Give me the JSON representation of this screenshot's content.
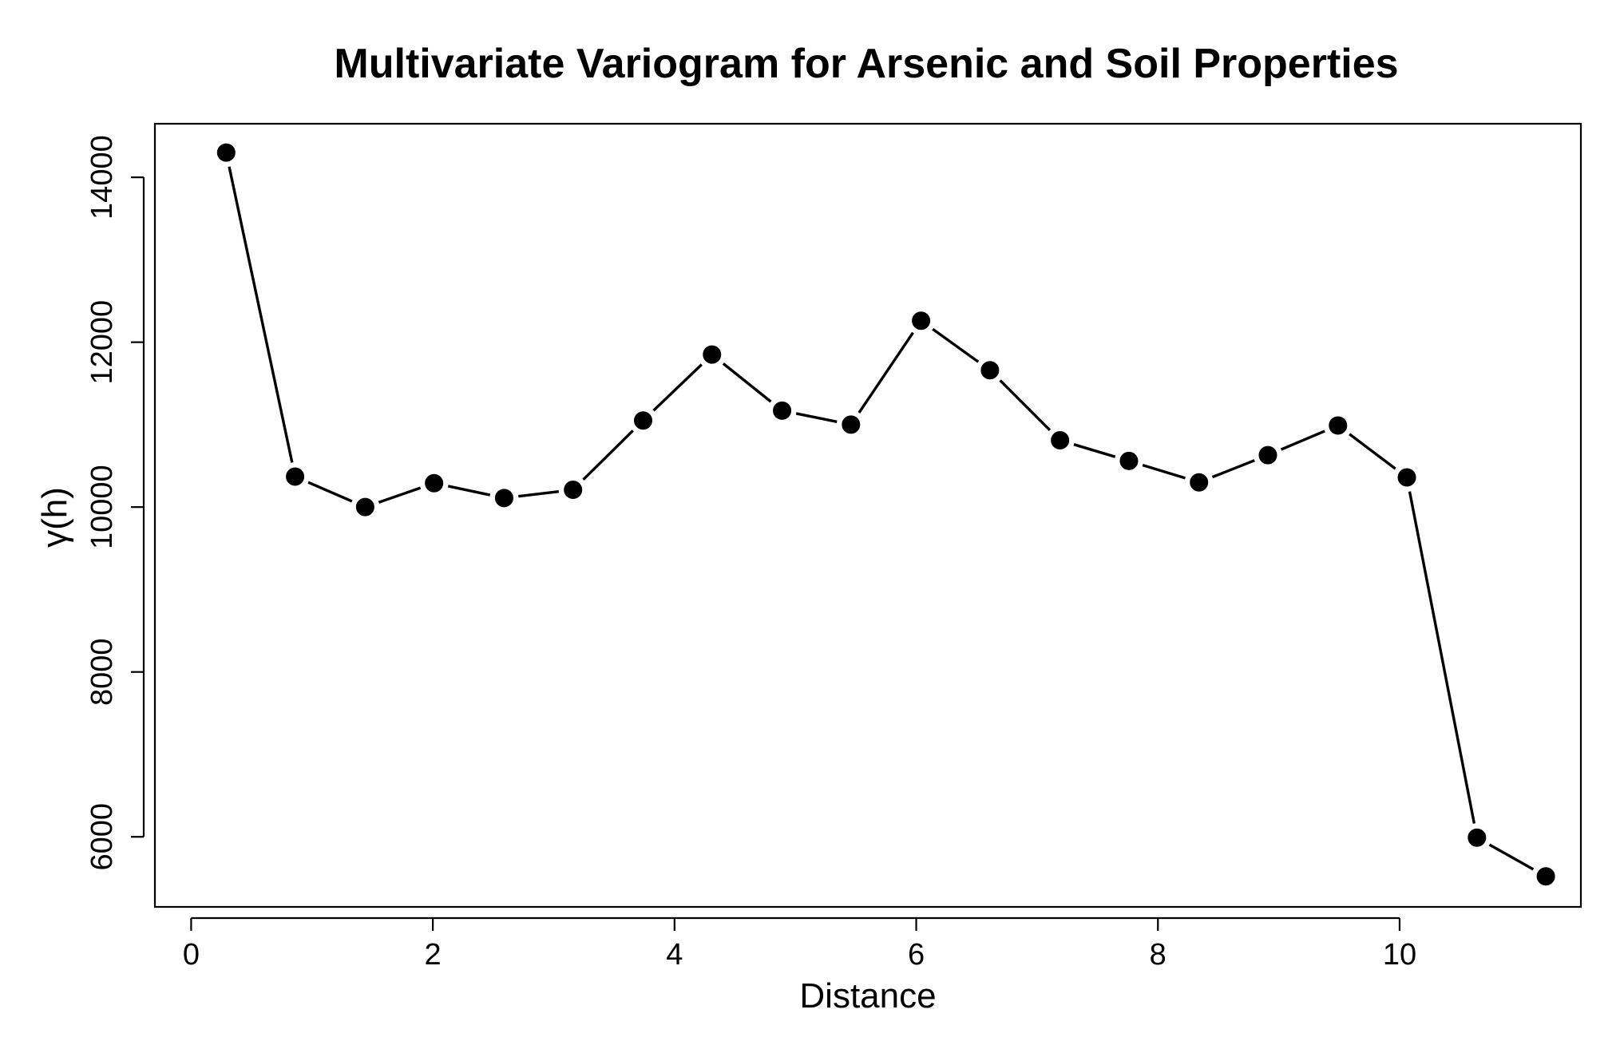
{
  "chart_data": {
    "type": "line",
    "title": "Multivariate Variogram for Arsenic and Soil Properties",
    "xlabel": "Distance",
    "ylabel": "γ(h)",
    "xlim": [
      -0.3,
      11.5
    ],
    "ylim": [
      5150,
      14650
    ],
    "x_ticks": [
      0,
      2,
      4,
      6,
      8,
      10
    ],
    "y_ticks": [
      6000,
      8000,
      10000,
      12000,
      14000
    ],
    "grid": false,
    "line_color": "#000000",
    "marker_color": "#000000",
    "series": [
      {
        "x": [
          0.29,
          0.86,
          1.44,
          2.01,
          2.59,
          3.16,
          3.74,
          4.31,
          4.89,
          5.46,
          6.04,
          6.61,
          7.19,
          7.76,
          8.34,
          8.91,
          9.49,
          10.06,
          10.64,
          11.21
        ],
        "y": [
          14300,
          10370,
          10000,
          10290,
          10110,
          10210,
          11050,
          11850,
          11170,
          11000,
          12260,
          11660,
          10810,
          10560,
          10300,
          10630,
          10990,
          10360,
          5990,
          5520
        ]
      }
    ]
  }
}
